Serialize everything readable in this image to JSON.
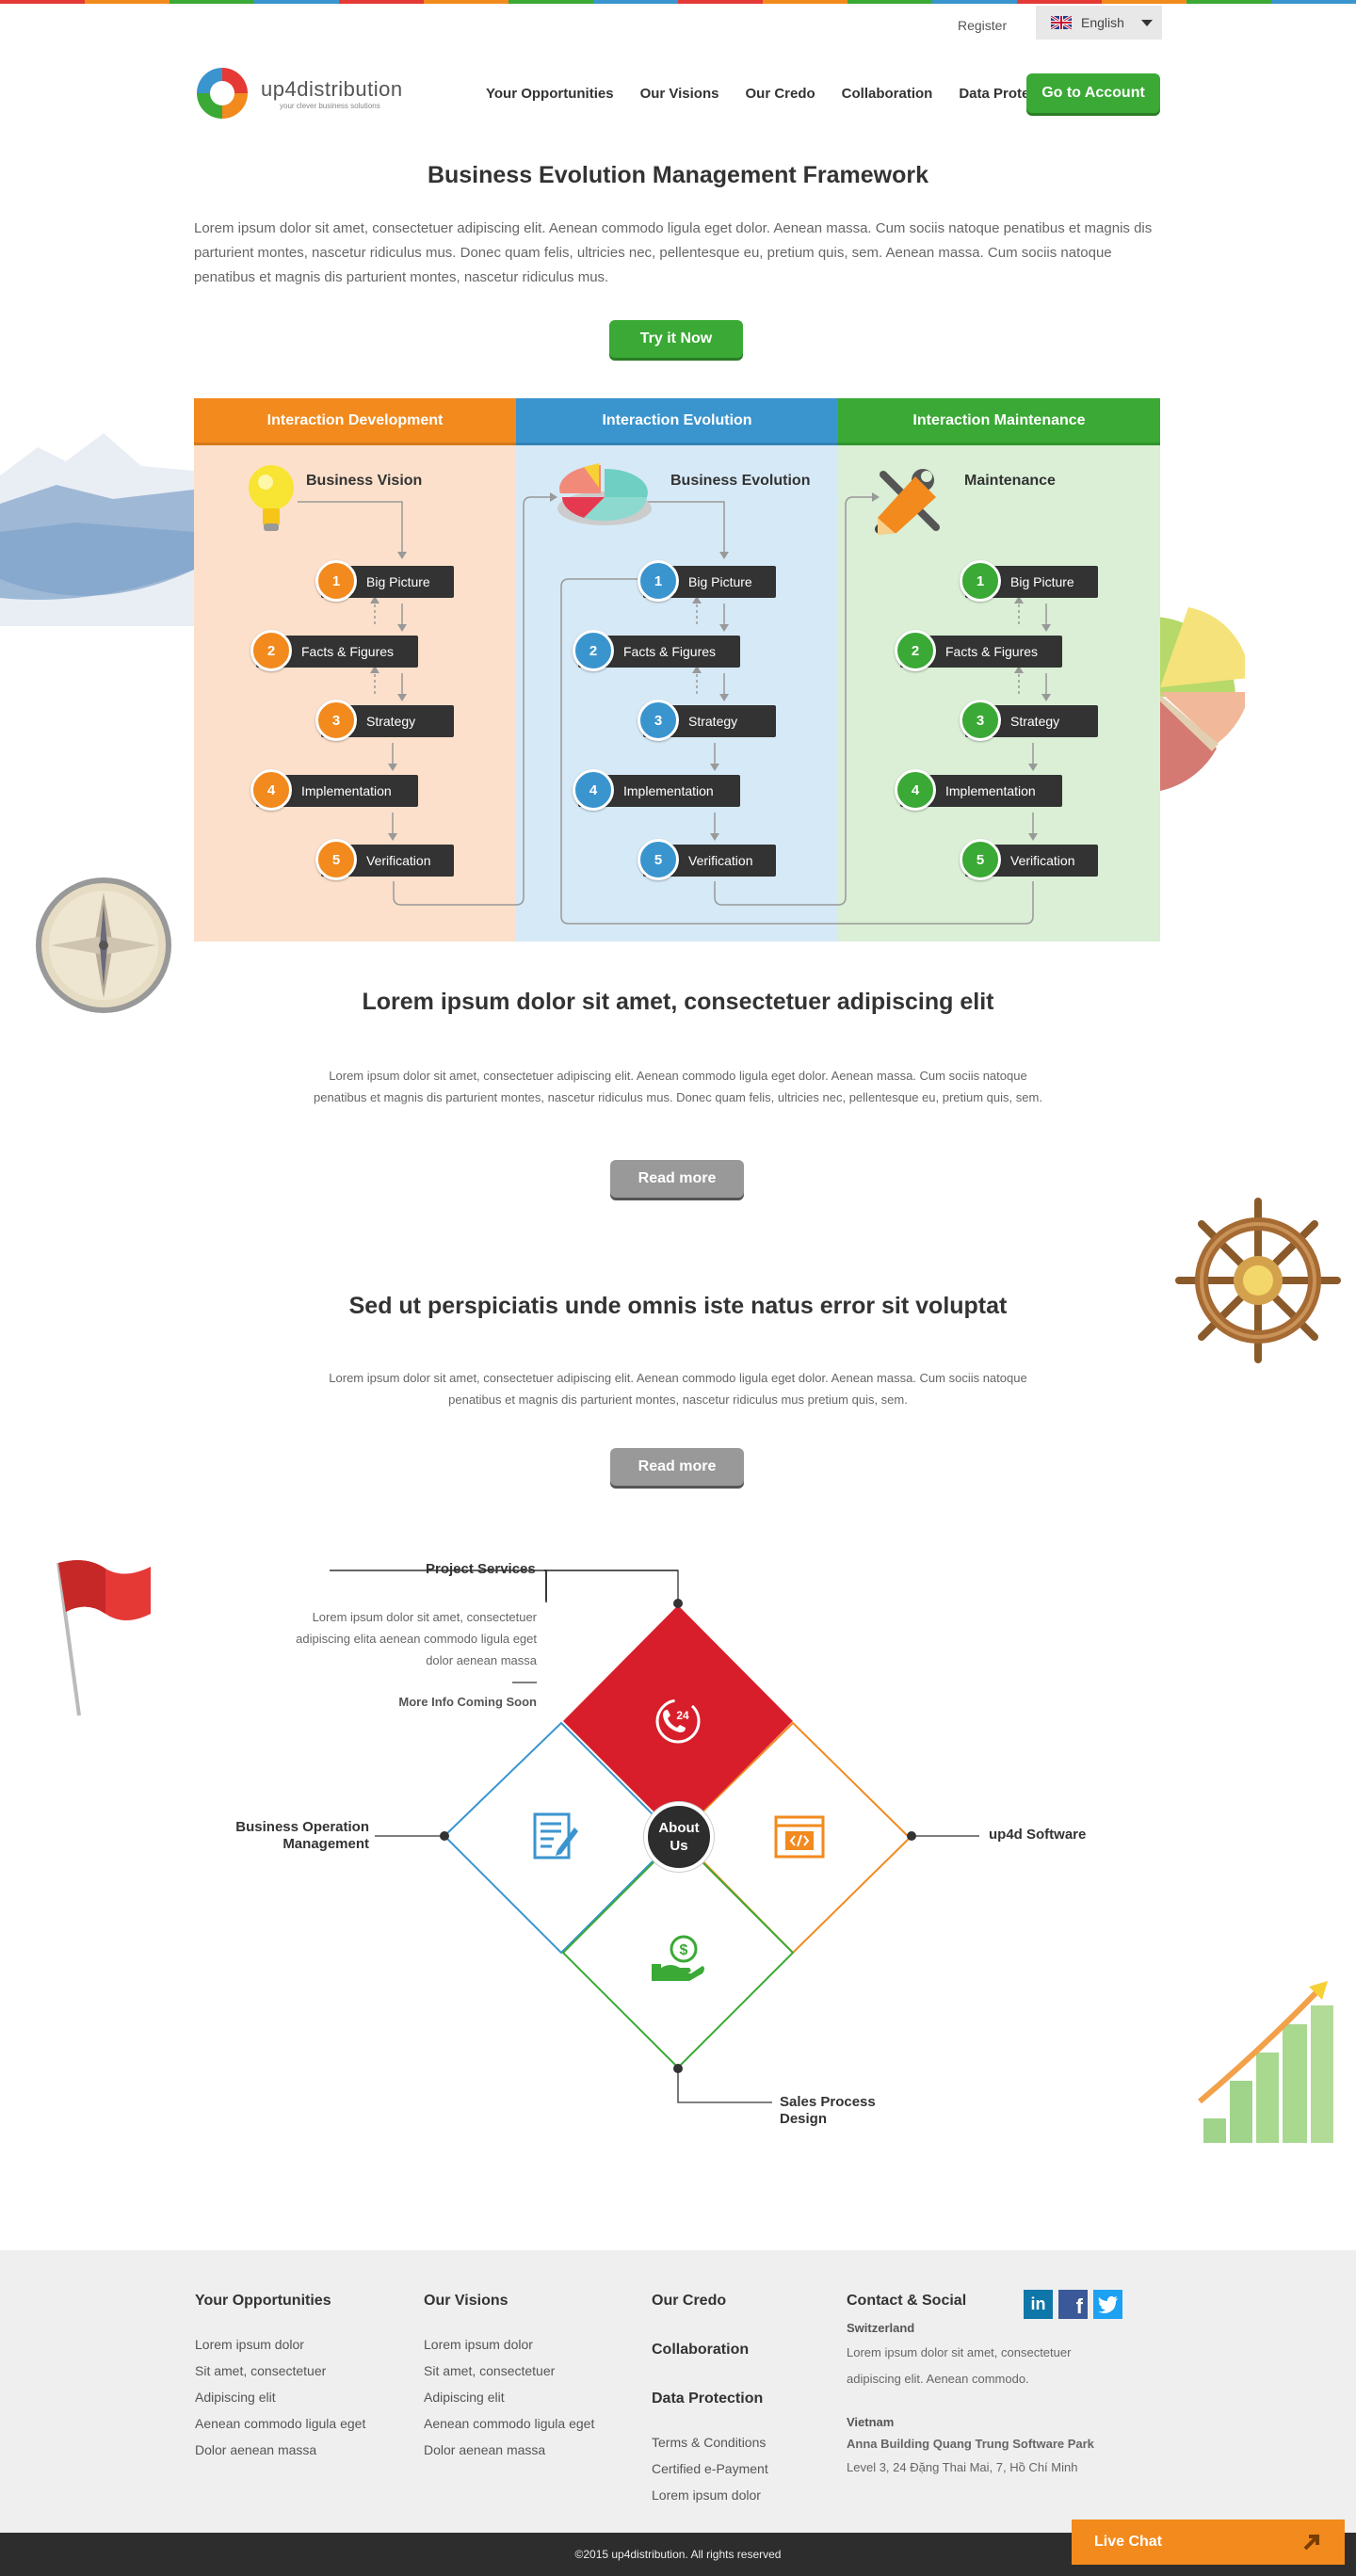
{
  "header": {
    "register": "Register",
    "language": "English",
    "logo_name": "up4distribution",
    "logo_tagline": "your clever business solutions",
    "nav": [
      "Your Opportunities",
      "Our Visions",
      "Our Credo",
      "Collaboration",
      "Data Protection"
    ],
    "cta": "Go to Account"
  },
  "hero": {
    "title": "Business Evolution Management Framework",
    "text": "Lorem ipsum dolor sit amet, consectetuer adipiscing elit. Aenean commodo ligula eget dolor. Aenean massa. Cum sociis natoque penatibus et magnis dis parturient montes, nascetur ridiculus mus. Donec quam felis, ultricies nec, pellentesque eu, pretium quis, sem. Aenean massa. Cum sociis natoque penatibus et magnis dis parturient montes, nascetur ridiculus mus.",
    "button": "Try it Now"
  },
  "framework": {
    "columns": [
      {
        "header": "Interaction Development",
        "title": "Business Vision",
        "color": "#f28a1e",
        "bg": "#fce0cb"
      },
      {
        "header": "Interaction Evolution",
        "title": "Business Evolution",
        "color": "#3a95cf",
        "bg": "#d6e9f6"
      },
      {
        "header": "Interaction Maintenance",
        "title": "Maintenance",
        "color": "#3aa935",
        "bg": "#daefd5"
      }
    ],
    "steps": [
      {
        "num": "1",
        "label": "Big Picture"
      },
      {
        "num": "2",
        "label": "Facts & Figures"
      },
      {
        "num": "3",
        "label": "Strategy"
      },
      {
        "num": "4",
        "label": "Implementation"
      },
      {
        "num": "5",
        "label": "Verification"
      }
    ]
  },
  "section1": {
    "title": "Lorem ipsum dolor sit amet, consectetuer adipiscing elit",
    "text": "Lorem ipsum dolor sit amet, consectetuer adipiscing elit. Aenean commodo ligula eget dolor. Aenean massa. Cum sociis natoque penatibus et magnis dis parturient montes, nascetur ridiculus mus. Donec quam felis, ultricies nec, pellentesque eu, pretium quis, sem.",
    "button": "Read more"
  },
  "section2": {
    "title": "Sed ut perspiciatis unde omnis iste natus error sit voluptat",
    "text": "Lorem ipsum dolor sit amet, consectetuer adipiscing elit. Aenean commodo ligula eget dolor. Aenean massa. Cum sociis natoque penatibus et magnis dis parturient montes, nascetur ridiculus mus pretium quis, sem.",
    "button": "Read more"
  },
  "services": {
    "project_services": "Project Services",
    "project_text": "Lorem ipsum dolor sit amet, consectetuer adipiscing elita aenean commodo ligula eget dolor aenean massa",
    "more_info": "More Info Coming Soon",
    "center": "About Us",
    "left": "Business Operation Management",
    "right": "up4d Software",
    "bottom": "Sales Process Design",
    "badge_24": "24"
  },
  "footer": {
    "col1": {
      "title": "Your Opportunities",
      "items": [
        "Lorem ipsum dolor",
        "Sit amet, consectetuer",
        "Adipiscing elit",
        "Aenean commodo ligula eget",
        "Dolor aenean massa"
      ]
    },
    "col2": {
      "title": "Our Visions",
      "items": [
        "Lorem ipsum dolor",
        "Sit amet, consectetuer",
        "Adipiscing elit",
        "Aenean commodo ligula eget",
        "Dolor aenean massa"
      ]
    },
    "col3": {
      "title1": "Our Credo",
      "title2": "Collaboration",
      "title3": "Data Protection",
      "items": [
        "Terms & Conditions",
        "Certified e-Payment",
        "Lorem ipsum dolor"
      ]
    },
    "col4": {
      "title": "Contact & Social",
      "loc1": "Switzerland",
      "text1": "Lorem ipsum dolor sit amet, consectetuer adipiscing elit. Aenean commodo.",
      "loc2": "Vietnam",
      "addr_bold": "Anna Building Quang Trung Software Park",
      "addr": "Level 3, 24 Đặng Thai Mai, 7, Hồ Chí Minh"
    },
    "copyright": "©2015 up4distribution. All rights reserved",
    "live_chat": "Live Chat"
  }
}
